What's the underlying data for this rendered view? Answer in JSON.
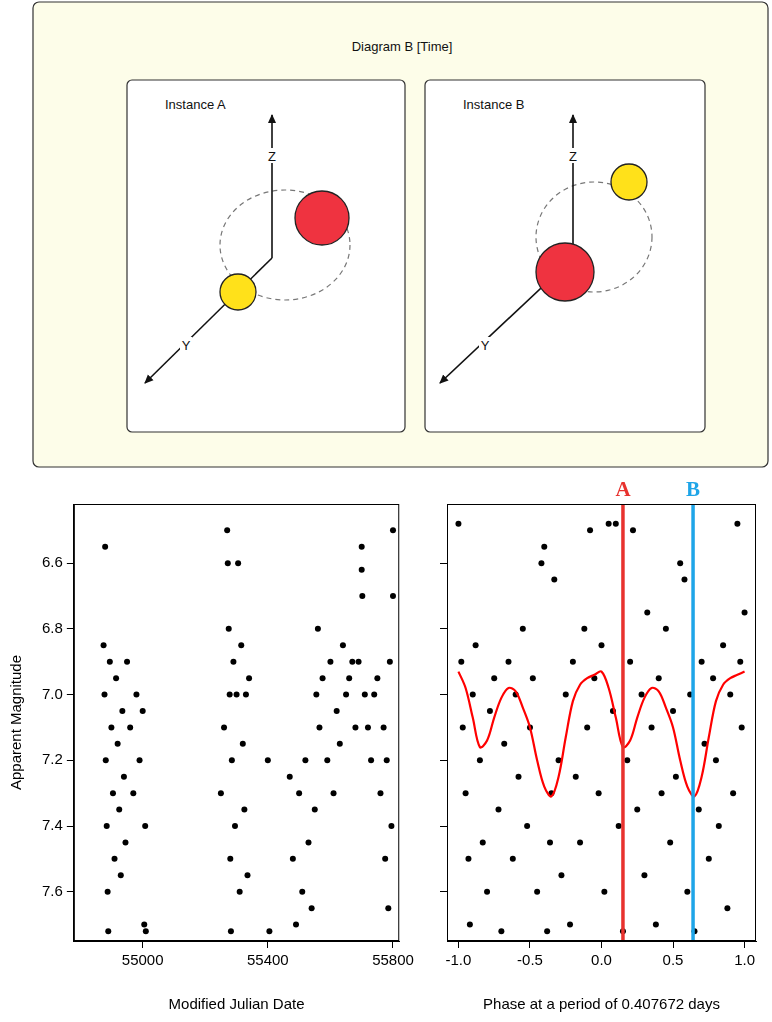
{
  "diagram": {
    "title": "Diagram B [Time]",
    "panels": [
      {
        "label": "Instance A",
        "axes": [
          "Z",
          "Y"
        ]
      },
      {
        "label": "Instance B",
        "axes": [
          "Z",
          "Y"
        ]
      }
    ]
  },
  "chart_data": [
    {
      "type": "scatter",
      "x_label": "Modified Julian Date",
      "y_label": "Apparent Magnitude",
      "xlim": [
        54780,
        55820
      ],
      "xticks": [
        55000,
        55400,
        55800
      ],
      "ylim": [
        7.75,
        6.42
      ],
      "yticks": [
        6.6,
        6.8,
        {
          "value": 7,
          "label": "7.0"
        },
        7.2,
        7.4,
        7.6
      ],
      "grid": false,
      "series": [
        {
          "type": "scatter",
          "color": "#000000",
          "marker": "circle",
          "x": [
            54880,
            54875,
            54878,
            54882,
            54885,
            54888,
            54890,
            54895,
            54900,
            54905,
            54910,
            54915,
            54920,
            54925,
            54930,
            54935,
            54940,
            54945,
            54950,
            54960,
            54970,
            54980,
            54990,
            55000,
            55005,
            55010,
            55008,
            55250,
            55260,
            55270,
            55272,
            55275,
            55278,
            55280,
            55282,
            55285,
            55290,
            55295,
            55300,
            55305,
            55310,
            55315,
            55320,
            55325,
            55330,
            55335,
            55340,
            55400,
            55405,
            55470,
            55480,
            55490,
            55500,
            55510,
            55520,
            55530,
            55540,
            55550,
            55555,
            55560,
            55565,
            55575,
            55590,
            55600,
            55610,
            55620,
            55630,
            55640,
            55650,
            55660,
            55670,
            55680,
            55690,
            55700,
            55700,
            55702,
            55710,
            55720,
            55730,
            55740,
            55750,
            55760,
            55770,
            55775,
            55780,
            55785,
            55790,
            55795,
            55800,
            55800
          ],
          "values": [
            6.55,
            6.85,
            7.0,
            7.2,
            7.4,
            7.6,
            7.72,
            6.9,
            7.1,
            7.3,
            7.5,
            6.95,
            7.15,
            7.35,
            7.55,
            7.05,
            7.25,
            7.45,
            6.9,
            7.1,
            7.3,
            7.0,
            7.2,
            7.05,
            7.7,
            7.72,
            7.4,
            7.3,
            7.1,
            6.5,
            6.6,
            6.8,
            7.0,
            7.5,
            7.72,
            7.2,
            6.9,
            7.4,
            7.0,
            6.6,
            7.6,
            6.85,
            7.15,
            7.35,
            7.0,
            7.55,
            6.95,
            7.2,
            7.72,
            7.25,
            7.5,
            7.7,
            7.3,
            7.6,
            7.2,
            7.45,
            7.65,
            7.35,
            7.0,
            6.8,
            7.1,
            6.95,
            7.2,
            6.9,
            7.3,
            7.05,
            7.15,
            6.85,
            7.0,
            6.95,
            6.9,
            7.1,
            6.9,
            6.55,
            6.62,
            6.7,
            7.0,
            7.1,
            7.2,
            7.0,
            6.95,
            7.3,
            7.1,
            7.5,
            7.2,
            7.65,
            6.9,
            7.4,
            6.5,
            6.7
          ]
        }
      ]
    },
    {
      "type": "scatter",
      "x_label": "Phase at a period of 0.407672 days",
      "xlim": [
        -1.08,
        1.08
      ],
      "xticks": [
        {
          "value": -1,
          "label": "-1.0"
        },
        -0.5,
        {
          "value": 0,
          "label": "0.0"
        },
        0.5,
        {
          "value": 1,
          "label": "1.0"
        }
      ],
      "ylim": [
        7.75,
        6.42
      ],
      "yticks": [
        6.6,
        6.8,
        {
          "value": 7,
          "label": "7.0"
        },
        7.2,
        7.4,
        7.6
      ],
      "grid": false,
      "tick_labels": "x",
      "series": [
        {
          "type": "scatter",
          "color": "#000000",
          "marker": "circle",
          "x": [
            -1.0,
            -0.98,
            -0.97,
            -0.95,
            -0.93,
            -0.92,
            -0.9,
            -0.88,
            -0.85,
            -0.83,
            -0.8,
            -0.78,
            -0.75,
            -0.72,
            -0.7,
            -0.68,
            -0.65,
            -0.62,
            -0.6,
            -0.58,
            -0.55,
            -0.52,
            -0.5,
            -0.48,
            -0.45,
            -0.42,
            -0.4,
            -0.38,
            -0.36,
            -0.35,
            -0.33,
            -0.3,
            -0.28,
            -0.25,
            -0.22,
            -0.2,
            -0.18,
            -0.15,
            -0.12,
            -0.1,
            -0.08,
            -0.05,
            -0.02,
            0.0,
            0.02,
            0.05,
            0.08,
            0.1,
            0.12,
            0.15,
            0.18,
            0.2,
            0.22,
            0.25,
            0.28,
            0.3,
            0.32,
            0.35,
            0.38,
            0.4,
            0.42,
            0.45,
            0.48,
            0.5,
            0.52,
            0.55,
            0.58,
            0.6,
            0.62,
            0.65,
            0.68,
            0.7,
            0.72,
            0.75,
            0.78,
            0.8,
            0.82,
            0.85,
            0.88,
            0.9,
            0.92,
            0.95,
            0.97,
            0.98,
            1.0
          ],
          "values": [
            6.48,
            6.9,
            7.1,
            7.3,
            7.5,
            7.7,
            7.0,
            6.85,
            7.2,
            7.45,
            7.6,
            7.05,
            6.95,
            7.35,
            7.72,
            7.15,
            6.9,
            7.5,
            7.0,
            7.25,
            6.8,
            7.4,
            7.1,
            6.95,
            7.6,
            6.6,
            6.55,
            7.72,
            7.45,
            7.3,
            6.65,
            7.2,
            7.55,
            7.0,
            7.7,
            6.9,
            7.25,
            7.45,
            6.8,
            7.1,
            6.5,
            6.95,
            7.3,
            6.85,
            7.6,
            6.48,
            7.05,
            6.48,
            7.4,
            7.72,
            7.2,
            6.9,
            6.5,
            7.35,
            7.0,
            7.55,
            6.75,
            7.1,
            7.7,
            6.95,
            7.3,
            6.8,
            7.45,
            7.05,
            7.25,
            6.6,
            6.65,
            7.6,
            7.0,
            7.72,
            7.35,
            6.9,
            7.15,
            7.5,
            6.95,
            7.2,
            7.4,
            6.85,
            7.65,
            7.0,
            7.3,
            6.48,
            6.9,
            7.1,
            6.75
          ]
        },
        {
          "type": "line",
          "color": "#ff0000",
          "line_style": "solid",
          "x": [
            -1.0,
            -0.95,
            -0.9,
            -0.85,
            -0.8,
            -0.75,
            -0.7,
            -0.65,
            -0.6,
            -0.55,
            -0.5,
            -0.45,
            -0.4,
            -0.35,
            -0.3,
            -0.25,
            -0.2,
            -0.15,
            -0.1,
            -0.05,
            0.0,
            0.05,
            0.1,
            0.15,
            0.2,
            0.25,
            0.3,
            0.35,
            0.4,
            0.45,
            0.5,
            0.55,
            0.6,
            0.65,
            0.7,
            0.75,
            0.8,
            0.85,
            0.9,
            0.95,
            1.0
          ],
          "values": [
            6.93,
            6.98,
            7.07,
            7.16,
            7.14,
            7.07,
            7.01,
            6.98,
            6.99,
            7.04,
            7.1,
            7.2,
            7.28,
            7.31,
            7.25,
            7.13,
            7.02,
            6.97,
            6.95,
            6.94,
            6.93,
            6.98,
            7.07,
            7.16,
            7.14,
            7.07,
            7.01,
            6.98,
            6.99,
            7.04,
            7.1,
            7.2,
            7.28,
            7.31,
            7.25,
            7.13,
            7.02,
            6.97,
            6.95,
            6.94,
            6.93
          ]
        }
      ],
      "annotations": [
        {
          "label": "A",
          "x": 0.15,
          "color": "#e8322e"
        },
        {
          "label": "B",
          "x": 0.64,
          "color": "#1ea5e8"
        }
      ]
    }
  ]
}
